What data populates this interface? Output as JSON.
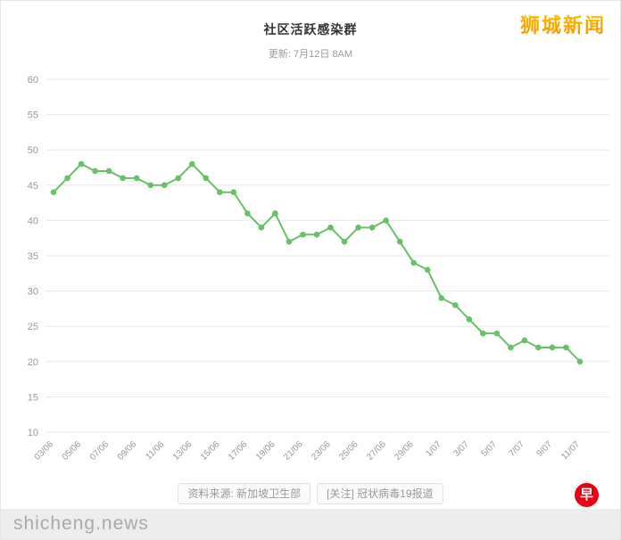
{
  "header": {
    "title": "社区活跃感染群",
    "subtitle": "更新: 7月12日 8AM",
    "brand": "狮城新闻"
  },
  "footer": {
    "source": "资料来源: 新加坡卫生部",
    "follow": "[关注] 冠状病毒19报道",
    "logo_char": "早",
    "watermark": "shicheng.news"
  },
  "colors": {
    "series_green": "#6abf69",
    "brand_orange": "#f9a602",
    "logo_red": "#e60012",
    "grid_gray": "#e9e9e9",
    "label_gray": "#999999"
  },
  "chart_data": {
    "type": "line",
    "title": "社区活跃感染群",
    "subtitle": "更新: 7月12日 8AM",
    "x": [
      "03/06",
      "04/06",
      "05/06",
      "06/06",
      "07/06",
      "08/06",
      "09/06",
      "10/06",
      "11/06",
      "12/06",
      "13/06",
      "14/06",
      "15/06",
      "16/06",
      "17/06",
      "18/06",
      "19/06",
      "20/06",
      "21/06",
      "22/06",
      "23/06",
      "24/06",
      "25/06",
      "26/06",
      "27/06",
      "28/06",
      "29/06",
      "30/06",
      "1/07",
      "2/07",
      "3/07",
      "4/07",
      "5/07",
      "6/07",
      "7/07",
      "8/07",
      "9/07",
      "10/07",
      "11/07"
    ],
    "values": [
      44,
      46,
      48,
      47,
      47,
      46,
      46,
      45,
      45,
      46,
      48,
      46,
      44,
      44,
      41,
      39,
      41,
      37,
      38,
      38,
      39,
      37,
      39,
      39,
      40,
      37,
      34,
      33,
      29,
      28,
      26,
      24,
      24,
      22,
      23,
      22,
      22,
      22,
      20
    ],
    "ylim": [
      10,
      60
    ],
    "ytick_step": 5,
    "xtick_every": 2,
    "xlabel": "",
    "ylabel": "",
    "grid": true,
    "legend": false,
    "series_color": "#6abf69"
  }
}
